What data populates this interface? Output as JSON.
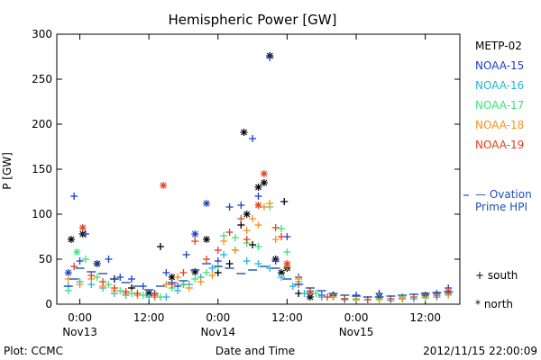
{
  "chart_data": {
    "type": "scatter",
    "title": "Hemispheric Power [GW]",
    "xlabel": "Date and Time",
    "ylabel": "P [GW]",
    "ylim": [
      0,
      300
    ],
    "yticks": [
      0,
      50,
      100,
      150,
      200,
      250,
      300
    ],
    "xlim_hours": [
      -4,
      66
    ],
    "xtick_hours": [
      0,
      12,
      24,
      36,
      48,
      60
    ],
    "xtick_labels_time": [
      "0:00",
      "12:00",
      "0:00",
      "12:00",
      "0:00",
      "12:00"
    ],
    "xtick_labels_date": [
      "Nov13",
      "Nov14",
      "Nov15"
    ],
    "xtick_date_hours": [
      0,
      24,
      48
    ],
    "footer_left": "Plot: CCMC",
    "footer_right": "2012/11/15 22:00:09",
    "legend_placement": "right, outside plot",
    "series": [
      {
        "name": "METP-02",
        "color": "#000000",
        "points": [
          [
            -1.5,
            72,
            "n"
          ],
          [
            0.5,
            78,
            "n"
          ],
          [
            3,
            45,
            "n"
          ],
          [
            6,
            28,
            "p"
          ],
          [
            9,
            18,
            "p"
          ],
          [
            12,
            12,
            "n"
          ],
          [
            14,
            64,
            "p"
          ],
          [
            16,
            30,
            "n"
          ],
          [
            18,
            22,
            "p"
          ],
          [
            20,
            36,
            "n"
          ],
          [
            22,
            72,
            "n"
          ],
          [
            24,
            35,
            "p"
          ],
          [
            26,
            45,
            "p"
          ],
          [
            28,
            88,
            "p"
          ],
          [
            28.5,
            191,
            "n"
          ],
          [
            29,
            100,
            "n"
          ],
          [
            30,
            66,
            "p"
          ],
          [
            31,
            130,
            "n"
          ],
          [
            32,
            135,
            "n"
          ],
          [
            33,
            276,
            "n"
          ],
          [
            34,
            50,
            "n"
          ],
          [
            35,
            35,
            "n"
          ],
          [
            35.5,
            114,
            "p"
          ],
          [
            36,
            40,
            "n"
          ],
          [
            38,
            12,
            "p"
          ],
          [
            40,
            8,
            "n"
          ],
          [
            44,
            10,
            "p"
          ],
          [
            48,
            5,
            "p"
          ],
          [
            52,
            8,
            "n"
          ],
          [
            56,
            6,
            "p"
          ],
          [
            60,
            10,
            "n"
          ],
          [
            64,
            12,
            "p"
          ]
        ]
      },
      {
        "name": "NOAA-15",
        "color": "#1c3fc7",
        "points": [
          [
            -2,
            35,
            "n"
          ],
          [
            -1,
            120,
            "p"
          ],
          [
            0,
            48,
            "p"
          ],
          [
            1,
            78,
            "p"
          ],
          [
            3,
            45,
            "p"
          ],
          [
            5,
            50,
            "p"
          ],
          [
            7,
            30,
            "p"
          ],
          [
            9,
            28,
            "p"
          ],
          [
            11,
            20,
            "p"
          ],
          [
            13,
            12,
            "p"
          ],
          [
            15,
            35,
            "p"
          ],
          [
            17,
            20,
            "p"
          ],
          [
            18.5,
            55,
            "p"
          ],
          [
            20,
            78,
            "n"
          ],
          [
            22,
            112,
            "n"
          ],
          [
            24,
            48,
            "p"
          ],
          [
            26,
            108,
            "p"
          ],
          [
            28,
            110,
            "p"
          ],
          [
            30,
            184,
            "p"
          ],
          [
            31,
            120,
            "p"
          ],
          [
            33,
            274,
            "p"
          ],
          [
            34,
            48,
            "p"
          ],
          [
            36,
            75,
            "p"
          ],
          [
            38,
            30,
            "p"
          ],
          [
            40,
            12,
            "p"
          ],
          [
            42,
            10,
            "p"
          ],
          [
            44,
            8,
            "p"
          ],
          [
            46,
            6,
            "p"
          ],
          [
            48,
            10,
            "p"
          ],
          [
            52,
            12,
            "p"
          ],
          [
            56,
            8,
            "p"
          ],
          [
            60,
            10,
            "p"
          ],
          [
            62,
            12,
            "p"
          ],
          [
            64,
            18,
            "p"
          ]
        ]
      },
      {
        "name": "NOAA-16",
        "color": "#21b7d8",
        "points": [
          [
            -2,
            20,
            "p"
          ],
          [
            0,
            25,
            "p"
          ],
          [
            2,
            22,
            "p"
          ],
          [
            4,
            18,
            "p"
          ],
          [
            6,
            12,
            "p"
          ],
          [
            8,
            10,
            "p"
          ],
          [
            12,
            8,
            "p"
          ],
          [
            15,
            8,
            "p"
          ],
          [
            17,
            15,
            "p"
          ],
          [
            19,
            22,
            "p"
          ],
          [
            21,
            30,
            "p"
          ],
          [
            23,
            40,
            "p"
          ],
          [
            25,
            55,
            "p"
          ],
          [
            27,
            60,
            "p"
          ],
          [
            29,
            48,
            "p"
          ],
          [
            31,
            45,
            "p"
          ],
          [
            33,
            40,
            "p"
          ],
          [
            35,
            30,
            "p"
          ],
          [
            37,
            20,
            "p"
          ],
          [
            39,
            12,
            "p"
          ],
          [
            42,
            8,
            "p"
          ],
          [
            46,
            5,
            "p"
          ],
          [
            50,
            5,
            "p"
          ],
          [
            54,
            4,
            "p"
          ],
          [
            58,
            6,
            "p"
          ],
          [
            62,
            8,
            "p"
          ]
        ]
      },
      {
        "name": "NOAA-17",
        "color": "#3ee27a",
        "points": [
          [
            -2,
            15,
            "p"
          ],
          [
            -0.5,
            58,
            "n"
          ],
          [
            1,
            50,
            "p"
          ],
          [
            3,
            30,
            "p"
          ],
          [
            5,
            22,
            "p"
          ],
          [
            7,
            15,
            "p"
          ],
          [
            9,
            12,
            "p"
          ],
          [
            11,
            10,
            "p"
          ],
          [
            14,
            8,
            "p"
          ],
          [
            16,
            18,
            "p"
          ],
          [
            18,
            22,
            "p"
          ],
          [
            20,
            28,
            "p"
          ],
          [
            22,
            35,
            "p"
          ],
          [
            24,
            42,
            "p"
          ],
          [
            25,
            76,
            "p"
          ],
          [
            27,
            74,
            "p"
          ],
          [
            29,
            68,
            "p"
          ],
          [
            31,
            64,
            "p"
          ],
          [
            33,
            108,
            "p"
          ],
          [
            35,
            84,
            "p"
          ],
          [
            36,
            58,
            "p"
          ],
          [
            38,
            25,
            "p"
          ],
          [
            41,
            12,
            "p"
          ],
          [
            44,
            8,
            "p"
          ],
          [
            48,
            5,
            "p"
          ],
          [
            52,
            6,
            "p"
          ],
          [
            56,
            8,
            "p"
          ],
          [
            60,
            7,
            "p"
          ],
          [
            64,
            10,
            "p"
          ]
        ]
      },
      {
        "name": "NOAA-18",
        "color": "#f4921c",
        "points": [
          [
            -2,
            28,
            "p"
          ],
          [
            0,
            22,
            "p"
          ],
          [
            2,
            28,
            "p"
          ],
          [
            4,
            20,
            "p"
          ],
          [
            6,
            15,
            "p"
          ],
          [
            8,
            12,
            "p"
          ],
          [
            10,
            10,
            "p"
          ],
          [
            13,
            8,
            "p"
          ],
          [
            15,
            22,
            "p"
          ],
          [
            17,
            30,
            "p"
          ],
          [
            19,
            18,
            "p"
          ],
          [
            21,
            25,
            "p"
          ],
          [
            23,
            32,
            "p"
          ],
          [
            25,
            70,
            "p"
          ],
          [
            27,
            60,
            "p"
          ],
          [
            29,
            82,
            "p"
          ],
          [
            30,
            95,
            "p"
          ],
          [
            31,
            88,
            "p"
          ],
          [
            32,
            108,
            "p"
          ],
          [
            33,
            112,
            "p"
          ],
          [
            34,
            72,
            "p"
          ],
          [
            36,
            42,
            "p"
          ],
          [
            38,
            28,
            "p"
          ],
          [
            40,
            15,
            "p"
          ],
          [
            44,
            8,
            "p"
          ],
          [
            48,
            6,
            "p"
          ],
          [
            52,
            5,
            "p"
          ],
          [
            56,
            6,
            "p"
          ],
          [
            60,
            8,
            "p"
          ],
          [
            64,
            12,
            "p"
          ]
        ]
      },
      {
        "name": "NOAA-19",
        "color": "#e0401c",
        "points": [
          [
            -1,
            42,
            "p"
          ],
          [
            0.5,
            85,
            "n"
          ],
          [
            2,
            32,
            "p"
          ],
          [
            4,
            25,
            "p"
          ],
          [
            6,
            18,
            "p"
          ],
          [
            8,
            14,
            "p"
          ],
          [
            10,
            12,
            "p"
          ],
          [
            13,
            10,
            "p"
          ],
          [
            14.5,
            132,
            "n"
          ],
          [
            16,
            22,
            "p"
          ],
          [
            18,
            35,
            "p"
          ],
          [
            20,
            70,
            "p"
          ],
          [
            22,
            50,
            "p"
          ],
          [
            24,
            60,
            "p"
          ],
          [
            26,
            80,
            "p"
          ],
          [
            28,
            95,
            "p"
          ],
          [
            29,
            72,
            "p"
          ],
          [
            31,
            110,
            "n"
          ],
          [
            32,
            145,
            "n"
          ],
          [
            34,
            85,
            "p"
          ],
          [
            35,
            75,
            "p"
          ],
          [
            36,
            45,
            "n"
          ],
          [
            38,
            22,
            "p"
          ],
          [
            40,
            14,
            "p"
          ],
          [
            43,
            8,
            "p"
          ],
          [
            46,
            6,
            "p"
          ],
          [
            50,
            5,
            "p"
          ],
          [
            54,
            6,
            "p"
          ],
          [
            58,
            8,
            "p"
          ],
          [
            62,
            10,
            "p"
          ],
          [
            64,
            14,
            "n"
          ]
        ]
      },
      {
        "name": "Ovation Prime HPI",
        "name_lines": [
          "— Ovation",
          "Prime HPI"
        ],
        "color": "#1c4fb7",
        "points": [
          [
            -2,
            20,
            "d"
          ],
          [
            -1,
            28,
            "d"
          ],
          [
            0,
            40,
            "d"
          ],
          [
            2,
            36,
            "d"
          ],
          [
            4,
            34,
            "d"
          ],
          [
            6,
            28,
            "d"
          ],
          [
            8,
            24,
            "d"
          ],
          [
            10,
            20,
            "d"
          ],
          [
            12,
            16,
            "d"
          ],
          [
            14,
            20,
            "d"
          ],
          [
            16,
            24,
            "d"
          ],
          [
            18,
            26,
            "d"
          ],
          [
            20,
            38,
            "d"
          ],
          [
            22,
            45,
            "d"
          ],
          [
            24,
            42,
            "d"
          ],
          [
            26,
            40,
            "d"
          ],
          [
            28,
            34,
            "d"
          ],
          [
            30,
            38,
            "d"
          ],
          [
            32,
            42,
            "d"
          ],
          [
            34,
            40,
            "d"
          ],
          [
            36,
            28,
            "d"
          ],
          [
            38,
            22,
            "d"
          ],
          [
            40,
            18,
            "d"
          ],
          [
            42,
            15,
            "d"
          ],
          [
            44,
            12,
            "d"
          ],
          [
            46,
            10,
            "d"
          ],
          [
            48,
            9,
            "d"
          ],
          [
            50,
            8,
            "d"
          ],
          [
            52,
            8,
            "d"
          ],
          [
            54,
            9,
            "d"
          ],
          [
            56,
            10,
            "d"
          ],
          [
            58,
            11,
            "d"
          ],
          [
            60,
            12,
            "d"
          ],
          [
            62,
            13,
            "d"
          ],
          [
            64,
            14,
            "d"
          ]
        ]
      }
    ],
    "symbol_legend": [
      {
        "symbol": "+",
        "label": "south"
      },
      {
        "symbol": "*",
        "label": "north"
      }
    ]
  }
}
